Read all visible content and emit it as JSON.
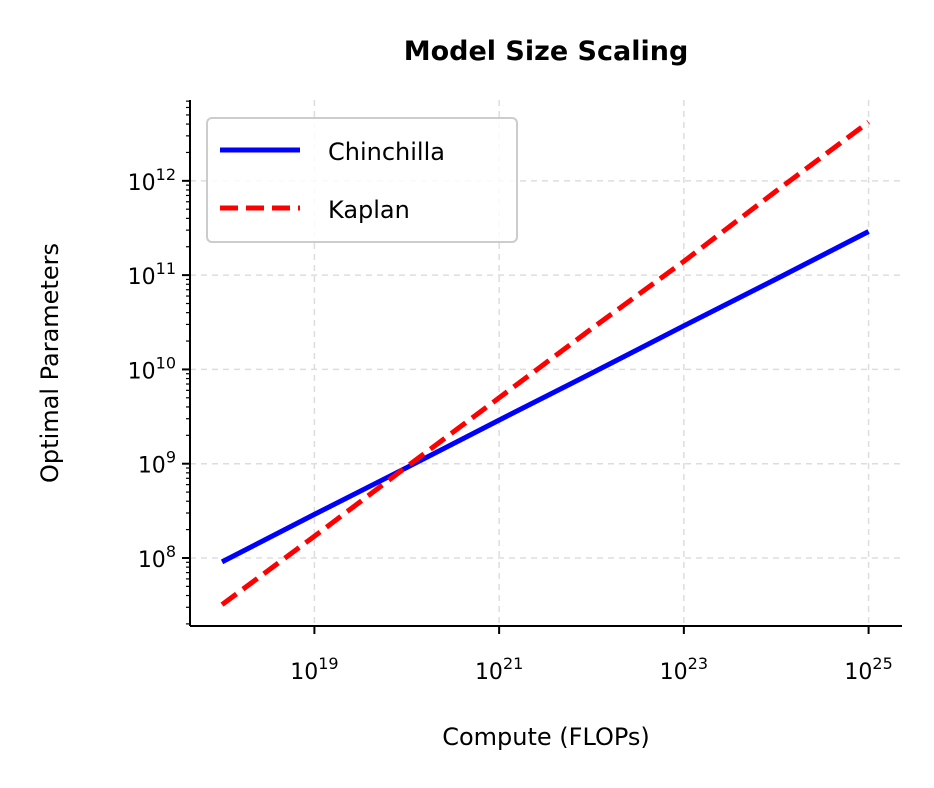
{
  "chart_data": {
    "type": "line",
    "title": "Model Size Scaling",
    "xlabel": "Compute (FLOPs)",
    "ylabel": "Optimal Parameters",
    "xscale": "log",
    "yscale": "log",
    "xlim": [
      4.5e+17,
      2.3e+25
    ],
    "ylim": [
      19000000.0,
      7200000000000.0
    ],
    "xticks": [
      {
        "exp": "19",
        "value": 1e+19
      },
      {
        "exp": "21",
        "value": 1e+21
      },
      {
        "exp": "23",
        "value": 1e+23
      },
      {
        "exp": "25",
        "value": 1e+25
      }
    ],
    "yticks": [
      {
        "exp": "8",
        "value": 100000000.0
      },
      {
        "exp": "9",
        "value": 1000000000.0
      },
      {
        "exp": "10",
        "value": 10000000000.0
      },
      {
        "exp": "11",
        "value": 100000000000.0
      },
      {
        "exp": "12",
        "value": 1000000000000.0
      }
    ],
    "tick_base": "10",
    "grid": true,
    "legend_position": "upper-left",
    "x": [
      1e+18,
      1e+19,
      1e+20,
      1e+21,
      1e+22,
      1e+23,
      1e+24,
      1e+25
    ],
    "series": [
      {
        "name": "Chinchilla",
        "color": "#0000ff",
        "style": "solid",
        "values": [
          91000000.0,
          290000000.0,
          910000000.0,
          2900000000.0,
          9100000000.0,
          29000000000.0,
          91000000000.0,
          290000000000.0
        ]
      },
      {
        "name": "Kaplan",
        "color": "#ff0000",
        "style": "dashed",
        "values": [
          32000000.0,
          170000000.0,
          930000000.0,
          5000000000.0,
          27000000000.0,
          140000000000.0,
          780000000000.0,
          4200000000000.0
        ]
      }
    ]
  }
}
